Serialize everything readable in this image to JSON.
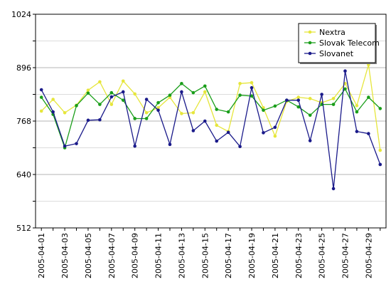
{
  "chart_data": {
    "type": "line",
    "title": "",
    "xlabel": "",
    "ylabel": "",
    "ylim": [
      512,
      1024
    ],
    "yticks": [
      512,
      640,
      768,
      896,
      1024
    ],
    "grid": "horizontal",
    "legend_position": "top-right",
    "x": [
      "2005-04-01",
      "2005-04-02",
      "2005-04-03",
      "2005-04-04",
      "2005-04-05",
      "2005-04-06",
      "2005-04-07",
      "2005-04-08",
      "2005-04-09",
      "2005-04-10",
      "2005-04-11",
      "2005-04-12",
      "2005-04-13",
      "2005-04-14",
      "2005-04-15",
      "2005-04-16",
      "2005-04-17",
      "2005-04-18",
      "2005-04-19",
      "2005-04-20",
      "2005-04-21",
      "2005-04-22",
      "2005-04-23",
      "2005-04-24",
      "2005-04-25",
      "2005-04-26",
      "2005-04-27",
      "2005-04-28",
      "2005-04-29",
      "2005-04-30"
    ],
    "x_tick_labels": [
      "2005-04-01",
      "2005-04-03",
      "2005-04-05",
      "2005-04-07",
      "2005-04-09",
      "2005-04-11",
      "2005-04-13",
      "2005-04-15",
      "2005-04-17",
      "2005-04-19",
      "2005-04-21",
      "2005-04-23",
      "2005-04-25",
      "2005-04-27",
      "2005-04-29"
    ],
    "series": [
      {
        "name": "Nextra",
        "color": "#e6e63c",
        "values": [
          792,
          820,
          788,
          806,
          842,
          862,
          808,
          864,
          833,
          788,
          800,
          825,
          786,
          788,
          838,
          758,
          743,
          858,
          860,
          800,
          732,
          815,
          825,
          822,
          812,
          822,
          858,
          805,
          903,
          698
        ]
      },
      {
        "name": "Slovak Telecom",
        "color": "#1a9e1a",
        "values": [
          825,
          784,
          704,
          805,
          835,
          808,
          836,
          818,
          774,
          774,
          812,
          830,
          858,
          836,
          852,
          796,
          790,
          830,
          828,
          794,
          804,
          818,
          802,
          782,
          808,
          808,
          845,
          790,
          825,
          798
        ]
      },
      {
        "name": "Slovanet",
        "color": "#1a1a8a",
        "values": [
          843,
          790,
          708,
          714,
          770,
          771,
          826,
          838,
          708,
          820,
          794,
          712,
          838,
          745,
          768,
          720,
          741,
          707,
          848,
          740,
          753,
          818,
          818,
          721,
          832,
          606,
          888,
          743,
          738,
          664
        ]
      }
    ]
  }
}
